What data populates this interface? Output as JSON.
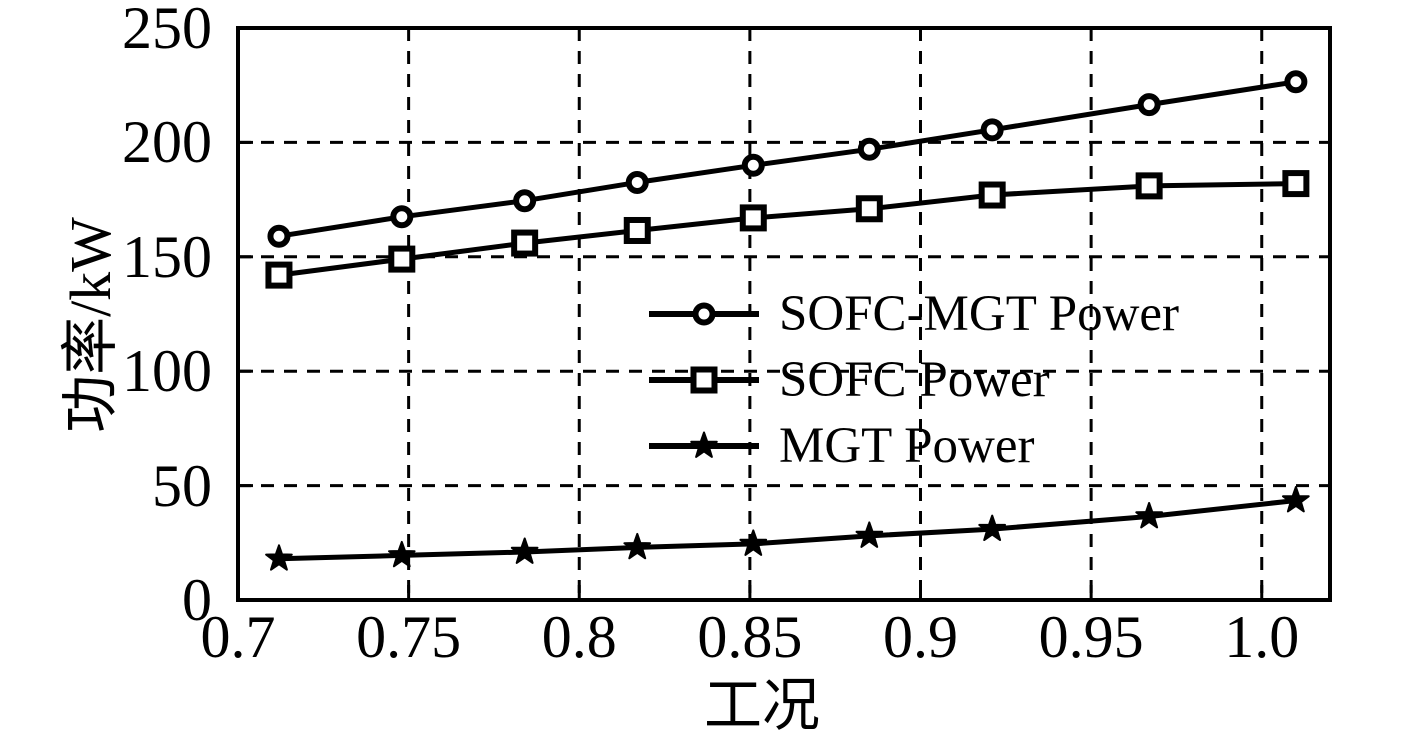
{
  "chart_data": {
    "type": "line",
    "title": "",
    "xlabel": "工况",
    "ylabel": "功率/kW",
    "xlim": [
      0.7,
      1.02
    ],
    "ylim": [
      0,
      250
    ],
    "x_tick_values": [
      0.7,
      0.75,
      0.8,
      0.85,
      0.9,
      0.95,
      1.0
    ],
    "x_tick_labels": [
      "0.7",
      "0.75",
      "0.8",
      "0.85",
      "0.9",
      "0.95",
      "1.0"
    ],
    "y_tick_values": [
      0,
      50,
      100,
      150,
      200,
      250
    ],
    "y_tick_labels": [
      "0",
      "50",
      "100",
      "150",
      "200",
      "250"
    ],
    "grid": {
      "style": "dashed",
      "on": true
    },
    "legend_position": "inside-center-right",
    "colors": {
      "foreground": "#000000",
      "background": "#ffffff"
    },
    "x": [
      0.712,
      0.748,
      0.784,
      0.817,
      0.851,
      0.885,
      0.921,
      0.967,
      1.01
    ],
    "series": [
      {
        "name": "SOFC-MGT Power",
        "marker": "circle",
        "line_color": "#000000",
        "values": [
          159,
          167.5,
          174.5,
          182.5,
          190,
          197,
          205.5,
          216.5,
          226.5
        ]
      },
      {
        "name": "SOFC Power",
        "marker": "square",
        "line_color": "#000000",
        "values": [
          142,
          149,
          156,
          161.5,
          167,
          171,
          177,
          181,
          182
        ]
      },
      {
        "name": "MGT Power",
        "marker": "star",
        "line_color": "#000000",
        "values": [
          18,
          19.5,
          21,
          23,
          24.5,
          28,
          31,
          36.5,
          43.5
        ]
      }
    ]
  }
}
